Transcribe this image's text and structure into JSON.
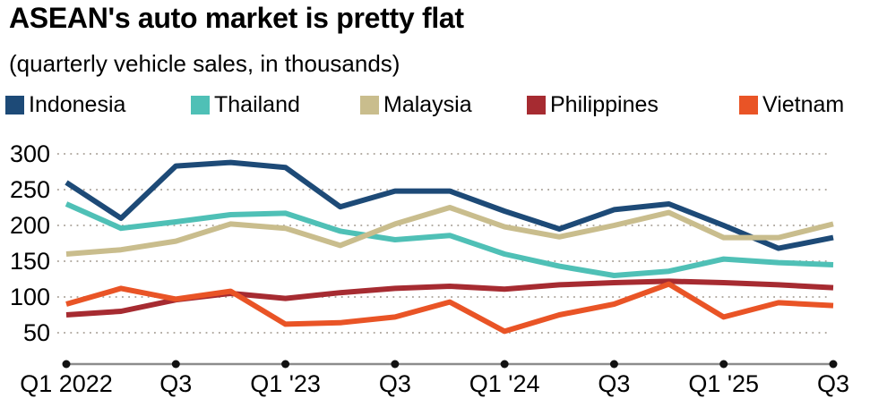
{
  "header": {
    "title": "ASEAN's auto market is pretty flat",
    "subtitle": "(quarterly vehicle sales, in thousands)"
  },
  "legend": {
    "items": [
      {
        "label": "Indonesia",
        "color": "#1d4a77"
      },
      {
        "label": "Thailand",
        "color": "#4fc0b6"
      },
      {
        "label": "Malaysia",
        "color": "#c9bd8d"
      },
      {
        "label": "Philippines",
        "color": "#a62b31"
      },
      {
        "label": "Vietnam",
        "color": "#e95426"
      }
    ]
  },
  "chart_data": {
    "type": "line",
    "title": "ASEAN's auto market is pretty flat",
    "subtitle": "(quarterly vehicle sales, in thousands)",
    "unit": "thousands of vehicles per quarter",
    "categories": [
      "Q1 2022",
      "Q2 2022",
      "Q3 2022",
      "Q4 2022",
      "Q1 2023",
      "Q2 2023",
      "Q3 2023",
      "Q4 2023",
      "Q1 2024",
      "Q2 2024",
      "Q3 2024",
      "Q4 2024",
      "Q1 2025",
      "Q2 2025",
      "Q3 2025"
    ],
    "x_tick_labels": [
      "Q1 2022",
      "Q3",
      "Q1 '23",
      "Q3",
      "Q1 '24",
      "Q3",
      "Q1 '25",
      "Q3"
    ],
    "x_tick_indices": [
      0,
      2,
      4,
      6,
      8,
      10,
      12,
      14
    ],
    "y_ticks": [
      300,
      250,
      200,
      150,
      100,
      50
    ],
    "ylim": [
      6,
      310
    ],
    "grid": "dotted-horizontal",
    "legend_position": "top",
    "grid_color": "#b3aca4",
    "axis_line_color": "#8c8c8c",
    "tick_dot_color": "#111111",
    "text_color": "#000000",
    "series": [
      {
        "name": "Indonesia",
        "color": "#1d4a77",
        "values": [
          260,
          210,
          283,
          288,
          281,
          226,
          248,
          248,
          220,
          195,
          222,
          230,
          200,
          168,
          183
        ]
      },
      {
        "name": "Thailand",
        "color": "#4fc0b6",
        "values": [
          230,
          196,
          205,
          215,
          217,
          192,
          180,
          186,
          160,
          143,
          130,
          136,
          153,
          148,
          145
        ]
      },
      {
        "name": "Malaysia",
        "color": "#c9bd8d",
        "values": [
          160,
          166,
          178,
          202,
          196,
          172,
          202,
          225,
          198,
          184,
          200,
          218,
          183,
          183,
          202
        ]
      },
      {
        "name": "Philippines",
        "color": "#a62b31",
        "values": [
          75,
          80,
          96,
          105,
          98,
          106,
          112,
          115,
          111,
          117,
          120,
          122,
          120,
          117,
          113
        ]
      },
      {
        "name": "Vietnam",
        "color": "#e95426",
        "values": [
          90,
          112,
          97,
          108,
          62,
          64,
          72,
          93,
          52,
          75,
          90,
          118,
          72,
          92,
          88
        ]
      }
    ]
  }
}
